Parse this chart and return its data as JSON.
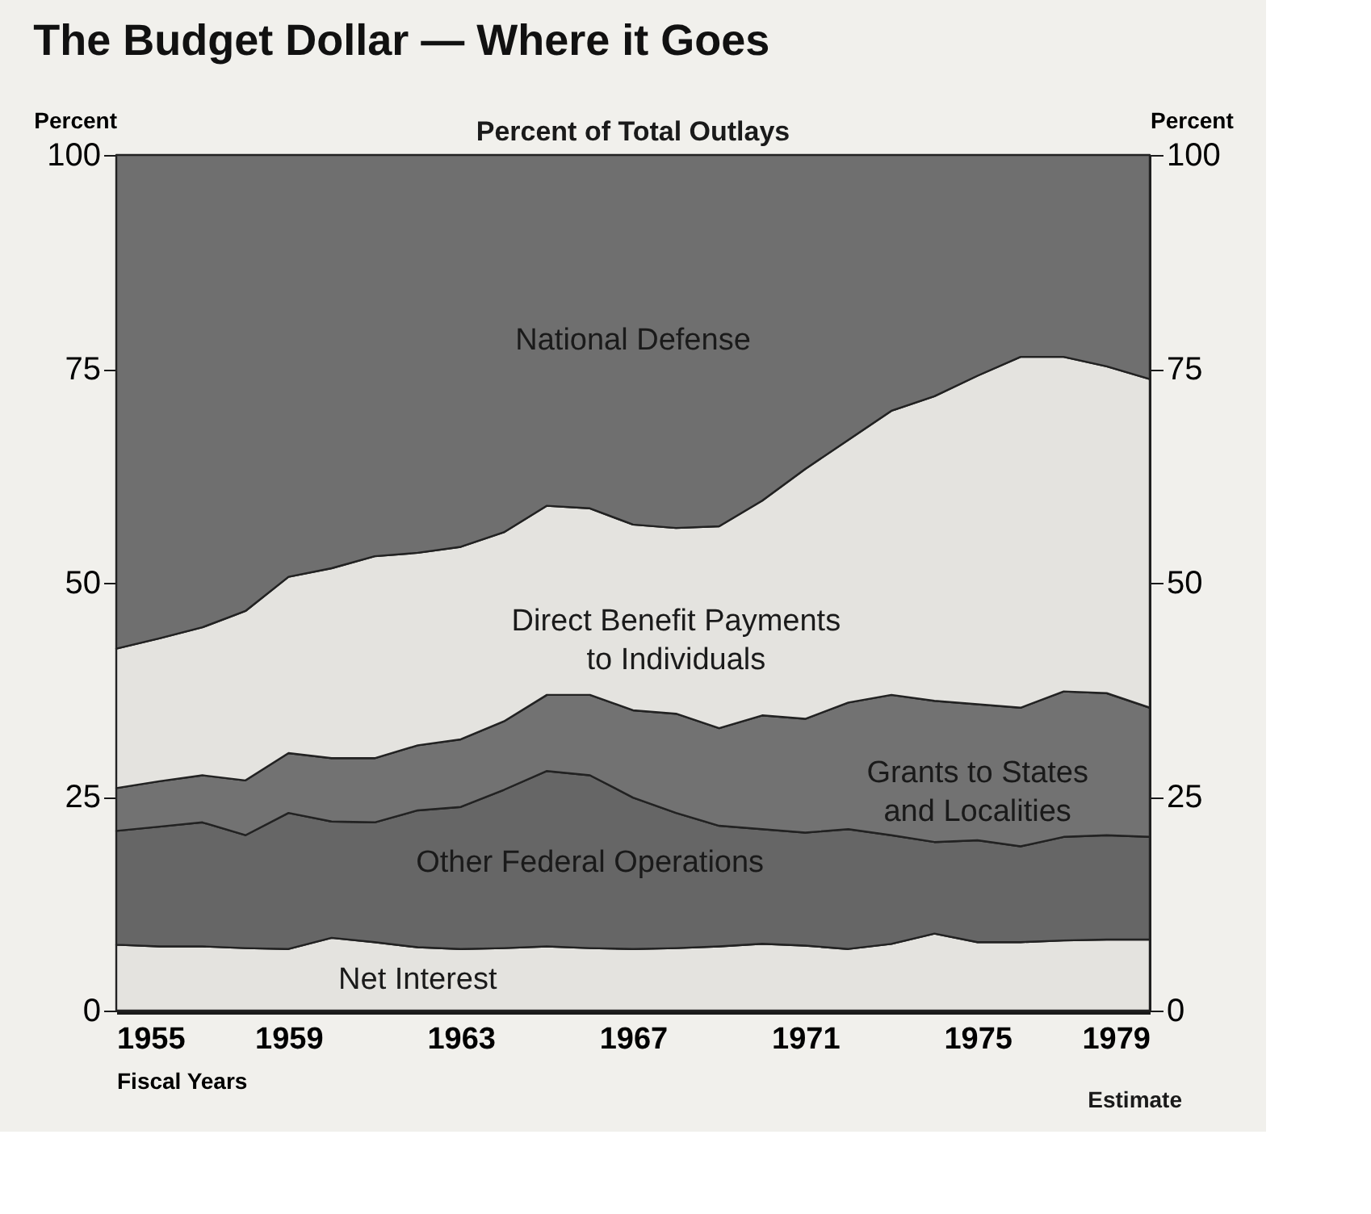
{
  "chart_data": {
    "type": "area",
    "stacked": true,
    "title": "The Budget Dollar — Where it Goes",
    "subtitle": "Percent of Total Outlays",
    "xlabel": "Fiscal Years",
    "ylabel": "Percent",
    "y2label": "Percent",
    "annotations": [
      "Estimate"
    ],
    "x": [
      1955,
      1956,
      1957,
      1958,
      1959,
      1960,
      1961,
      1962,
      1963,
      1964,
      1965,
      1966,
      1967,
      1968,
      1969,
      1970,
      1971,
      1972,
      1973,
      1974,
      1975,
      1976,
      1977,
      1978,
      1979
    ],
    "series": [
      {
        "name": "Net Interest",
        "color": "#e4e3df",
        "values": [
          7.7,
          7.5,
          7.5,
          7.3,
          7.2,
          8.5,
          8.0,
          7.4,
          7.2,
          7.3,
          7.5,
          7.3,
          7.2,
          7.3,
          7.5,
          7.8,
          7.6,
          7.2,
          7.8,
          9.0,
          8.0,
          8.0,
          8.2,
          8.3,
          8.3
        ]
      },
      {
        "name": "Other Federal Operations",
        "color": "#666666",
        "values": [
          13.3,
          14.0,
          14.5,
          13.2,
          15.9,
          13.6,
          14.0,
          16.0,
          16.6,
          18.5,
          20.5,
          20.2,
          17.7,
          15.8,
          14.1,
          13.4,
          13.2,
          14.0,
          12.7,
          10.7,
          11.9,
          11.2,
          12.1,
          12.2,
          12.0
        ]
      },
      {
        "name": "Grants to States and Localities",
        "color": "#727272",
        "values": [
          5.0,
          5.3,
          5.5,
          6.4,
          7.0,
          7.4,
          7.5,
          7.6,
          7.9,
          8.0,
          8.9,
          9.4,
          10.2,
          11.6,
          11.4,
          13.3,
          13.3,
          14.8,
          16.4,
          16.5,
          15.9,
          16.2,
          17.0,
          16.6,
          15.1
        ]
      },
      {
        "name": "Direct Benefit Payments to Individuals",
        "color": "#e4e3df",
        "values": [
          16.3,
          16.7,
          17.3,
          19.8,
          20.6,
          22.2,
          23.6,
          22.5,
          22.5,
          22.1,
          22.1,
          21.8,
          21.7,
          21.7,
          23.6,
          25.1,
          29.2,
          30.7,
          33.2,
          35.6,
          38.4,
          41.0,
          39.1,
          38.2,
          38.4
        ]
      },
      {
        "name": "National Defense",
        "color": "#6f6f6f",
        "values": [
          57.7,
          56.5,
          55.2,
          53.3,
          49.3,
          48.3,
          46.9,
          46.5,
          45.8,
          44.1,
          41.0,
          41.3,
          43.2,
          43.6,
          43.4,
          40.4,
          36.7,
          33.3,
          29.9,
          28.2,
          25.8,
          23.6,
          23.6,
          24.7,
          26.2
        ]
      }
    ],
    "xlim": [
      1955,
      1979
    ],
    "xticks": [
      1955,
      1959,
      1963,
      1967,
      1971,
      1975,
      1979
    ],
    "ylim": [
      0,
      100
    ],
    "yticks": [
      0,
      25,
      50,
      75,
      100
    ],
    "y2lim": [
      0,
      100
    ],
    "y2ticks": [
      0,
      25,
      50,
      75,
      100
    ]
  }
}
